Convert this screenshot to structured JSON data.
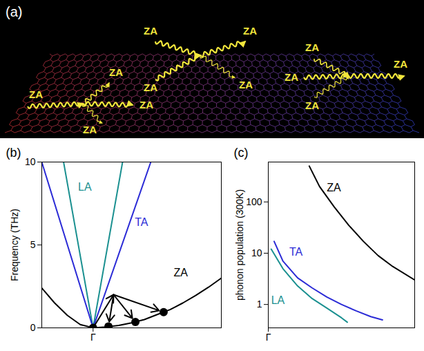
{
  "diagram": {
    "panel": "(a)",
    "labels": [
      "ZA",
      "ZA",
      "ZA",
      "ZA",
      "ZA",
      "ZA",
      "ZA",
      "ZA",
      "ZA",
      "ZA",
      "ZA",
      "ZA"
    ]
  },
  "chart_data": [
    {
      "type": "line",
      "title": "(b)",
      "y_label": "Frequency (THz)",
      "xlim": [
        -0.4,
        1
      ],
      "xticks": [
        {
          "value": 0,
          "label": "Γ"
        }
      ],
      "ylim": [
        0,
        10
      ],
      "yticks": [
        0,
        5,
        10
      ],
      "series": [
        {
          "name": "LA",
          "color": "#1a9090",
          "x": [
            -0.23,
            0,
            0.23
          ],
          "values": [
            10,
            0,
            10
          ]
        },
        {
          "name": "TA",
          "color": "#2b2bd6",
          "x": [
            -0.4,
            0,
            0.45
          ],
          "values": [
            10,
            0,
            10
          ]
        },
        {
          "name": "ZA",
          "color": "#000000",
          "x": [
            -0.4,
            -0.3,
            -0.2,
            -0.1,
            0,
            0.1,
            0.2,
            0.3,
            0.4,
            0.5,
            0.6,
            0.7,
            0.8,
            0.9,
            1.0
          ],
          "values": [
            2.4,
            1.5,
            0.75,
            0.2,
            0,
            0.05,
            0.15,
            0.3,
            0.5,
            0.8,
            1.1,
            1.5,
            1.95,
            2.45,
            3.0
          ]
        }
      ],
      "points": {
        "x": [
          0,
          0.12,
          0.33,
          0.55
        ],
        "values": [
          0,
          0.08,
          0.35,
          0.95
        ]
      },
      "arrows": [
        {
          "x1": 0,
          "y1": 0,
          "x2": 0.16,
          "y2": 2.0
        },
        {
          "x1": 0.16,
          "y1": 2.0,
          "x2": 0.12,
          "y2": 0.08
        },
        {
          "x1": 0.16,
          "y1": 2.0,
          "x2": 0.33,
          "y2": 0.35
        },
        {
          "x1": 0.16,
          "y1": 2.0,
          "x2": 0.55,
          "y2": 0.95
        }
      ]
    },
    {
      "type": "line",
      "title": "(c)",
      "y_label": "phonon population (300K)",
      "log": "y",
      "xlim": [
        0,
        1
      ],
      "xticks": [
        {
          "value": 0,
          "label": "Γ"
        }
      ],
      "ylim": [
        0.35,
        600
      ],
      "yticks": [
        1,
        10,
        100
      ],
      "series": [
        {
          "name": "LA",
          "color": "#1a9090",
          "x": [
            0.02,
            0.1,
            0.2,
            0.3,
            0.4,
            0.5,
            0.54
          ],
          "values": [
            12,
            5,
            2.3,
            1.3,
            0.85,
            0.55,
            0.45
          ]
        },
        {
          "name": "TA",
          "color": "#2b2bd6",
          "x": [
            0.04,
            0.1,
            0.2,
            0.3,
            0.4,
            0.5,
            0.6,
            0.7,
            0.78
          ],
          "values": [
            17,
            7,
            3.3,
            2.1,
            1.4,
            1.0,
            0.75,
            0.58,
            0.5
          ]
        },
        {
          "name": "ZA",
          "color": "#000000",
          "x": [
            0.28,
            0.35,
            0.45,
            0.55,
            0.65,
            0.75,
            0.85,
            1.0
          ],
          "values": [
            500,
            200,
            80,
            35,
            17,
            9,
            5.5,
            3
          ]
        }
      ]
    }
  ]
}
